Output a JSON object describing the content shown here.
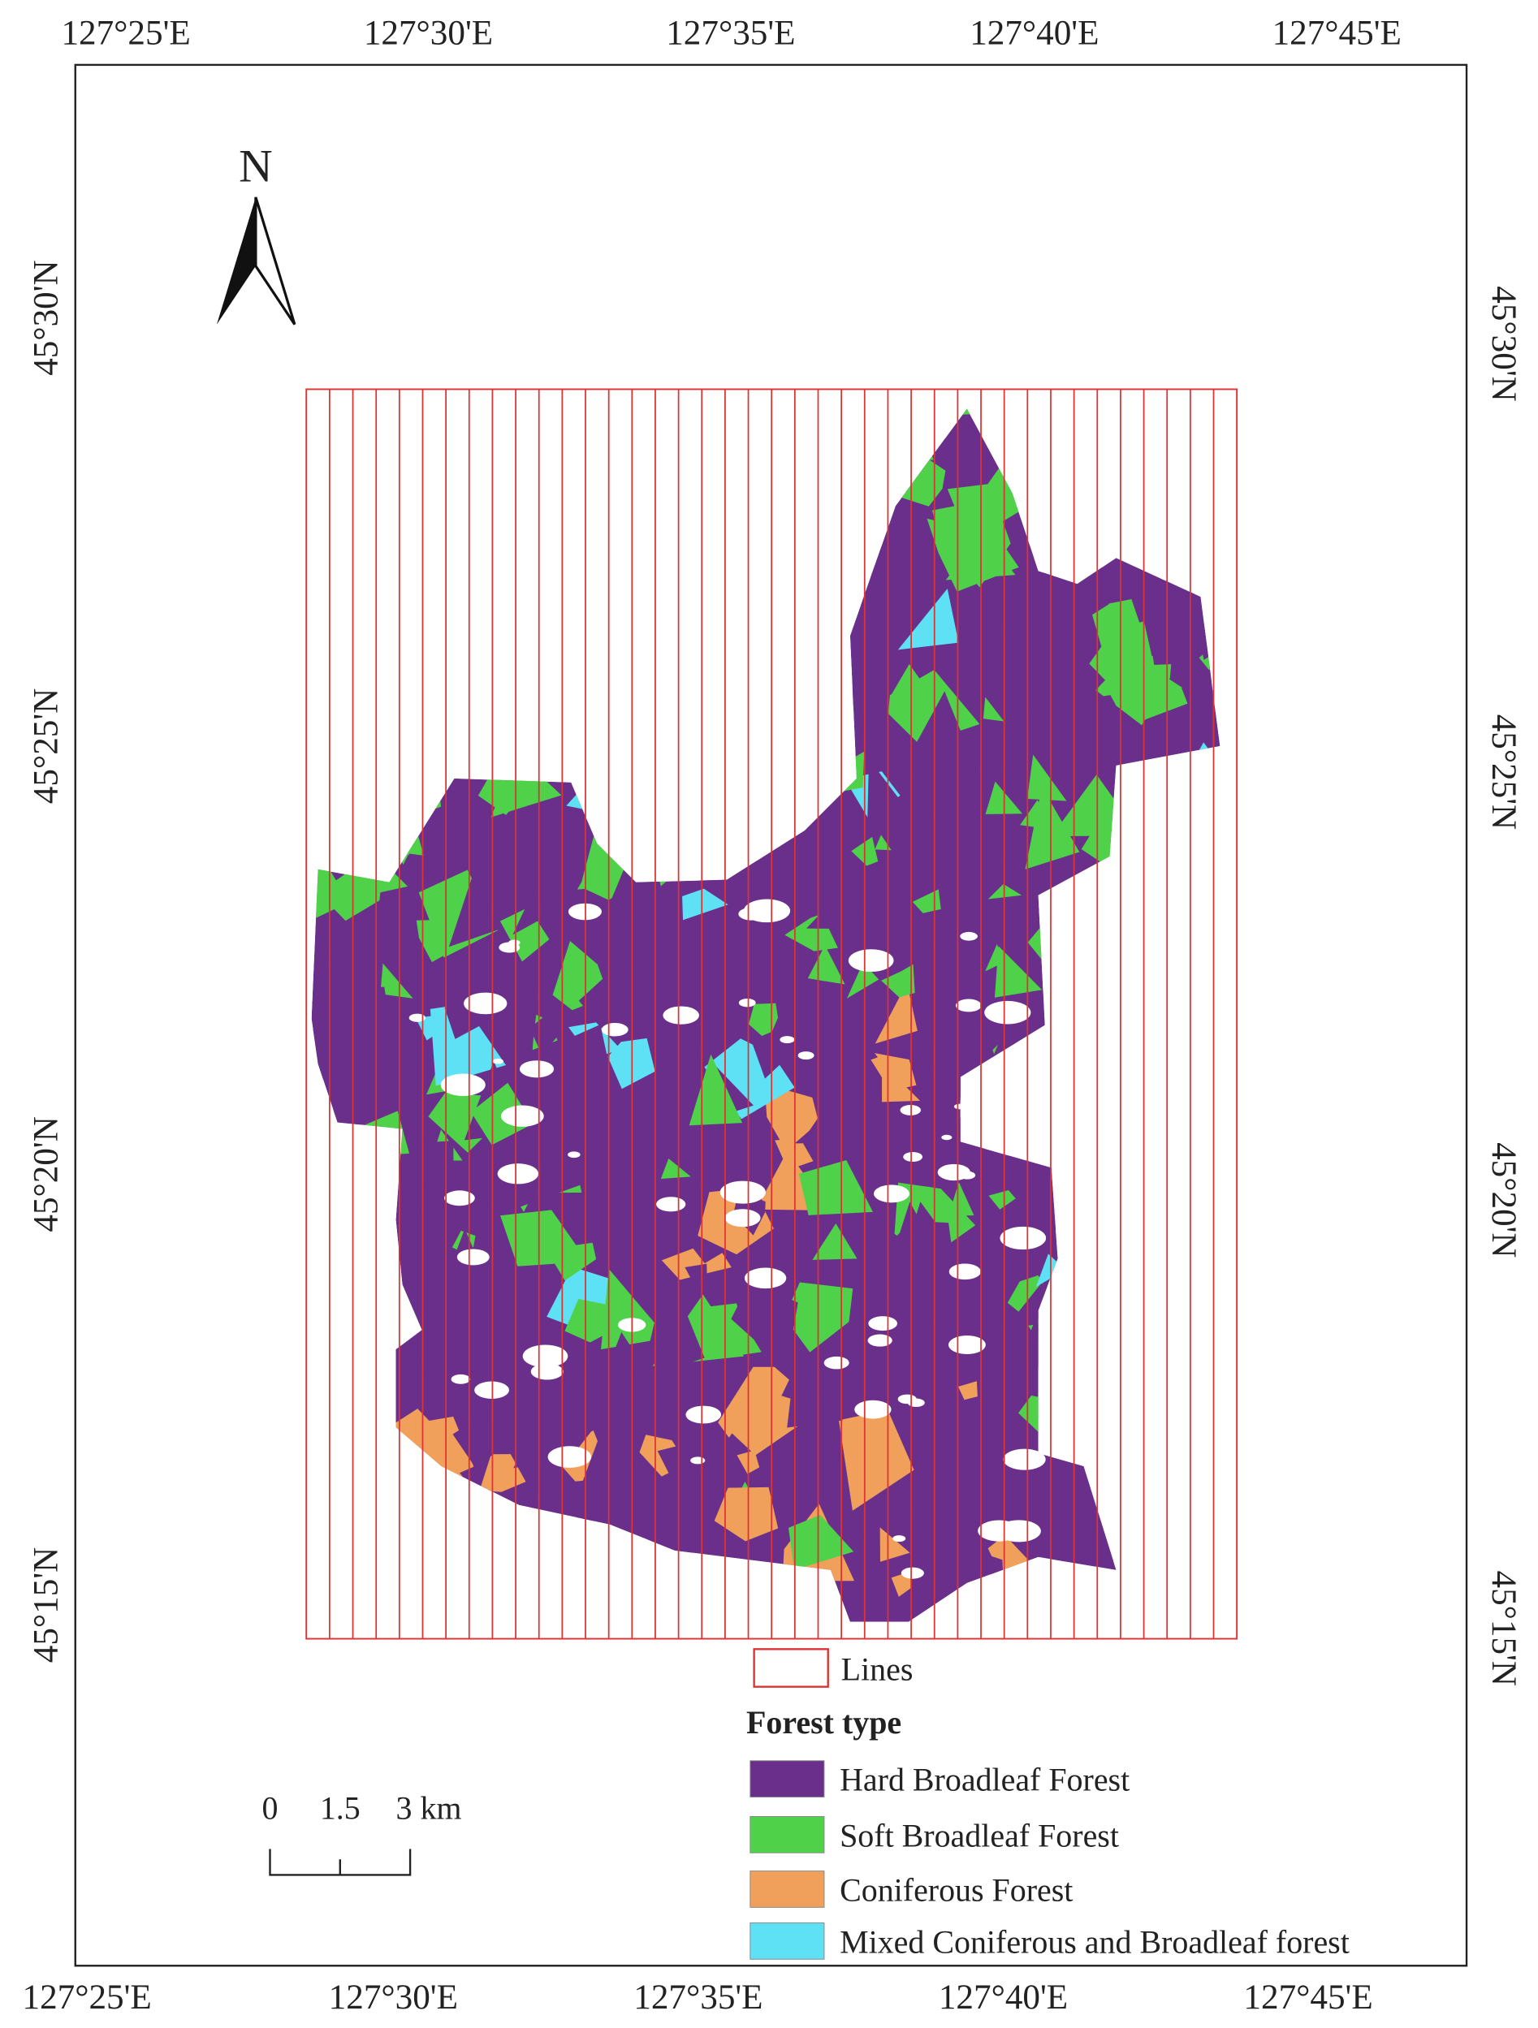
{
  "top_labels": [
    "127°25'E",
    "127°30'E",
    "127°35'E",
    "127°40'E",
    "127°45'E"
  ],
  "bottom_labels": [
    "127°25'E",
    "127°30'E",
    "127°35'E",
    "127°40'E",
    "127°45'E"
  ],
  "left_labels": [
    "45°30'N",
    "45°25'N",
    "45°20'N",
    "45°15'N"
  ],
  "right_labels": [
    "45°30'N",
    "45°25'N",
    "45°20'N",
    "45°15'N"
  ],
  "north": "N",
  "scale_labels": [
    "0",
    "1.5",
    "3 km"
  ],
  "legend": {
    "lines": "Lines",
    "title": "Forest type",
    "items": [
      {
        "label": "Hard Broadleaf Forest",
        "color": "#6a2f8a"
      },
      {
        "label": "Soft Broadleaf Forest",
        "color": "#4fd24a"
      },
      {
        "label": "Coniferous Forest",
        "color": "#f0a05a"
      },
      {
        "label": "Mixed Coniferous and Broadleaf forest",
        "color": "#5ee0f5"
      }
    ]
  }
}
